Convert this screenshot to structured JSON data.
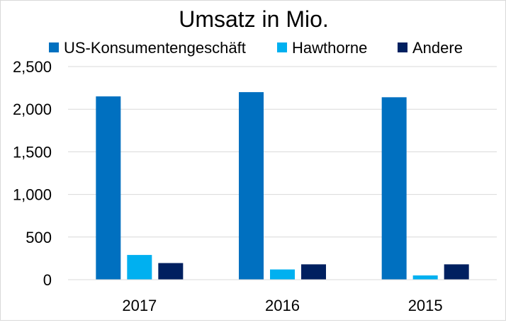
{
  "chart_data": {
    "type": "bar",
    "title": "Umsatz in Mio.",
    "categories": [
      "2017",
      "2016",
      "2015"
    ],
    "series": [
      {
        "name": "US-Konsumentengeschäft",
        "values": [
          2150,
          2200,
          2140
        ],
        "color": "#0070C0"
      },
      {
        "name": "Hawthorne",
        "values": [
          290,
          120,
          50
        ],
        "color": "#00B0F0"
      },
      {
        "name": "Andere",
        "values": [
          195,
          180,
          180
        ],
        "color": "#002060"
      }
    ],
    "ylim": [
      0,
      2500
    ],
    "yticks": [
      "0",
      "500",
      "1,000",
      "1,500",
      "2,000",
      "2,500"
    ],
    "grid": true,
    "legend_position": "top"
  }
}
